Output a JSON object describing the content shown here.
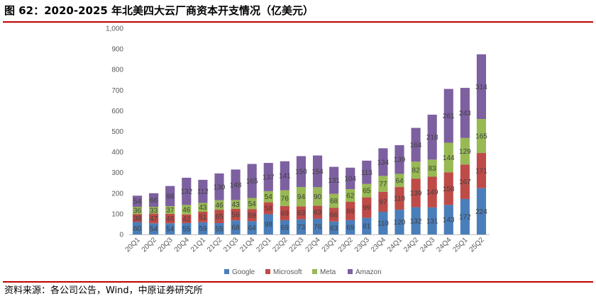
{
  "title": "图 62：2020-2025 年北美四大云厂商资本开支情况（亿美元）",
  "source": "资料来源：各公司公告，Wind，中原证券研究所",
  "colors": {
    "Google": "#4a7ebb",
    "Microsoft": "#be4b48",
    "Meta": "#98b954",
    "Amazon": "#7d60a0",
    "rule": "#c00000"
  },
  "chart_data": {
    "type": "bar",
    "stacked": true,
    "categories": [
      "20Q1",
      "20Q2",
      "20Q3",
      "20Q4",
      "21Q1",
      "21Q2",
      "21Q3",
      "21Q4",
      "22Q1",
      "22Q2",
      "22Q3",
      "22Q4",
      "23Q1",
      "23Q2",
      "23Q3",
      "23Q4",
      "24Q1",
      "24Q2",
      "24Q3",
      "24Q4",
      "25Q1",
      "25Q2"
    ],
    "series": [
      {
        "name": "Google",
        "values": [
          60,
          54,
          54,
          55,
          59,
          55,
          68,
          64,
          98,
          69,
          73,
          76,
          63,
          69,
          81,
          110,
          120,
          132,
          131,
          143,
          172,
          224
        ]
      },
      {
        "name": "Microsoft",
        "values": [
          38,
          47,
          46,
          42,
          51,
          65,
          56,
          59,
          58,
          69,
          63,
          63,
          66,
          89,
          99,
          97,
          110,
          139,
          149,
          158,
          167,
          171
        ]
      },
      {
        "name": "Meta",
        "values": [
          36,
          33,
          37,
          46,
          43,
          46,
          43,
          54,
          54,
          76,
          94,
          90,
          68,
          62,
          65,
          77,
          64,
          82,
          83,
          144,
          129,
          165
        ]
      },
      {
        "name": "Amazon",
        "values": [
          54,
          66,
          98,
          132,
          112,
          130,
          148,
          165,
          137,
          141,
          150,
          154,
          131,
          104,
          113,
          134,
          139,
          164,
          218,
          261,
          243,
          314
        ]
      }
    ],
    "ylim": [
      0,
      1000
    ],
    "yticks": [
      0,
      100,
      200,
      300,
      400,
      500,
      600,
      700,
      800,
      900,
      1000
    ],
    "ytick_labels": [
      "0",
      "100",
      "200",
      "300",
      "400",
      "500",
      "600",
      "700",
      "800",
      "900",
      "1,000"
    ],
    "xlabel": "",
    "ylabel": "",
    "grid": false,
    "legend_position": "bottom"
  }
}
